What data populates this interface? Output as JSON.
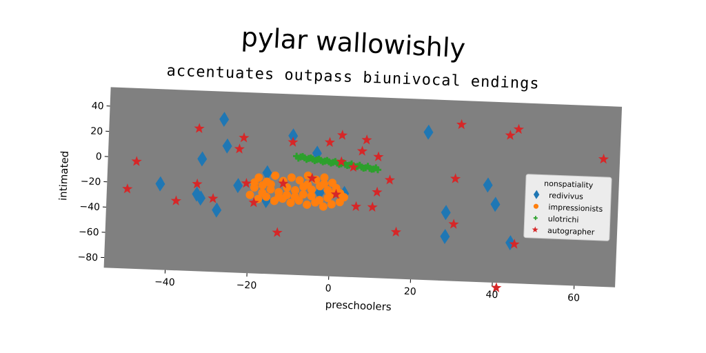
{
  "chart_data": {
    "type": "scatter",
    "title": "pylar wallowishly",
    "subtitle": "accentuates outpass biunivocal endings",
    "xlabel": "preschoolers",
    "ylabel": "intimated",
    "xlim": [
      -55,
      70
    ],
    "ylim": [
      -88,
      55
    ],
    "xticks": [
      -40,
      -20,
      0,
      20,
      40,
      60
    ],
    "yticks": [
      40,
      20,
      0,
      -20,
      -40,
      -60,
      -80
    ],
    "background_color": "#808080",
    "grid": false,
    "legend": {
      "title": "nonspatiality",
      "placement": "right"
    },
    "series": [
      {
        "name": "redivivus",
        "marker": "diamond",
        "color": "#1f77b4",
        "points": [
          [
            -27,
            33
          ],
          [
            -10,
            22
          ],
          [
            -4,
            9
          ],
          [
            -26,
            12
          ],
          [
            -32,
            1
          ],
          [
            -42,
            -20
          ],
          [
            -33,
            -27
          ],
          [
            -32,
            -30
          ],
          [
            -28,
            -39
          ],
          [
            -23,
            -19
          ],
          [
            -16,
            -8
          ],
          [
            -16,
            -30
          ],
          [
            -3,
            -22
          ],
          [
            3,
            -22
          ],
          [
            23,
            29
          ],
          [
            28,
            -34
          ],
          [
            28,
            -53
          ],
          [
            38,
            -11
          ],
          [
            40,
            -26
          ],
          [
            44,
            -56
          ]
        ]
      },
      {
        "name": "impressionists",
        "marker": "circle",
        "color": "#ff7f0e",
        "points": [
          [
            -18,
            -12
          ],
          [
            -16,
            -15
          ],
          [
            -14,
            -10
          ],
          [
            -12,
            -14
          ],
          [
            -10,
            -11
          ],
          [
            -8,
            -13
          ],
          [
            -6,
            -9
          ],
          [
            -4,
            -12
          ],
          [
            -2,
            -10
          ],
          [
            0,
            -14
          ],
          [
            1,
            -18
          ],
          [
            -1,
            -20
          ],
          [
            -3,
            -17
          ],
          [
            -5,
            -20
          ],
          [
            -7,
            -18
          ],
          [
            -9,
            -21
          ],
          [
            -11,
            -19
          ],
          [
            -13,
            -23
          ],
          [
            -15,
            -21
          ],
          [
            -17,
            -24
          ],
          [
            -19,
            -20
          ],
          [
            -20,
            -26
          ],
          [
            -18,
            -29
          ],
          [
            -16,
            -27
          ],
          [
            -14,
            -30
          ],
          [
            -12,
            -28
          ],
          [
            -10,
            -31
          ],
          [
            -8,
            -29
          ],
          [
            -6,
            -32
          ],
          [
            -4,
            -30
          ],
          [
            -2,
            -33
          ],
          [
            0,
            -31
          ],
          [
            2,
            -29
          ],
          [
            3,
            -25
          ],
          [
            2,
            -22
          ],
          [
            -1,
            -26
          ],
          [
            -3,
            -28
          ],
          [
            -5,
            -25
          ],
          [
            -7,
            -24
          ],
          [
            -9,
            -26
          ],
          [
            -11,
            -25
          ],
          [
            -13,
            -27
          ],
          [
            -15,
            -17
          ],
          [
            -17,
            -18
          ],
          [
            -19,
            -16
          ],
          [
            -6,
            -16
          ],
          [
            -2,
            -15
          ],
          [
            0,
            -23
          ]
        ]
      },
      {
        "name": "ulotrichi",
        "marker": "plus",
        "color": "#2ca02c",
        "points": [
          [
            -9,
            6
          ],
          [
            -8,
            5.5
          ],
          [
            -7,
            5
          ],
          [
            -6,
            4.6
          ],
          [
            -5,
            4.2
          ],
          [
            -4,
            3.8
          ],
          [
            -3,
            3.4
          ],
          [
            -2,
            3
          ],
          [
            -1,
            2.6
          ],
          [
            0,
            2.2
          ],
          [
            1,
            1.8
          ],
          [
            2,
            1.4
          ],
          [
            3,
            1
          ],
          [
            4,
            0.6
          ],
          [
            5,
            0.2
          ],
          [
            6,
            -0.2
          ],
          [
            7,
            -0.6
          ],
          [
            8,
            -1
          ],
          [
            9,
            -1.4
          ],
          [
            10,
            -1.8
          ],
          [
            11,
            -2.2
          ],
          [
            -8.5,
            4.5
          ],
          [
            -6.5,
            3.8
          ],
          [
            -4.5,
            3
          ],
          [
            -2.5,
            2.4
          ],
          [
            -0.5,
            1.6
          ],
          [
            1.5,
            0.8
          ],
          [
            3.5,
            0.2
          ],
          [
            5.5,
            -0.6
          ],
          [
            7.5,
            -1.4
          ],
          [
            9.5,
            -2
          ],
          [
            -7.5,
            6
          ],
          [
            -5.5,
            5
          ],
          [
            -3.5,
            4.4
          ],
          [
            -1.5,
            3.6
          ],
          [
            0.5,
            3
          ],
          [
            2.5,
            2.2
          ],
          [
            4.5,
            1.6
          ],
          [
            6.5,
            0.8
          ],
          [
            8.5,
            0.2
          ],
          [
            10.5,
            -0.8
          ]
        ]
      },
      {
        "name": "autographer",
        "marker": "star",
        "color": "#d62728",
        "points": [
          [
            -50,
            -25
          ],
          [
            -48,
            -3
          ],
          [
            -38,
            -33
          ],
          [
            -33,
            25
          ],
          [
            -33,
            -19
          ],
          [
            -29,
            -30
          ],
          [
            -23,
            10
          ],
          [
            -22,
            19
          ],
          [
            -21,
            -17
          ],
          [
            -19,
            -32
          ],
          [
            -13,
            -55
          ],
          [
            -12,
            -16
          ],
          [
            -10,
            17
          ],
          [
            -5,
            -11
          ],
          [
            -1,
            18
          ],
          [
            1,
            -23
          ],
          [
            2,
            3
          ],
          [
            2,
            24
          ],
          [
            5,
            -1
          ],
          [
            6,
            -32
          ],
          [
            7,
            12
          ],
          [
            8,
            21
          ],
          [
            10,
            -32
          ],
          [
            11,
            -20
          ],
          [
            11,
            8
          ],
          [
            14,
            -10
          ],
          [
            16,
            -51
          ],
          [
            30,
            -7
          ],
          [
            30,
            -43
          ],
          [
            31,
            36
          ],
          [
            41,
            -92
          ],
          [
            43,
            29
          ],
          [
            45,
            34
          ],
          [
            45,
            -57
          ],
          [
            66,
            13
          ]
        ]
      }
    ]
  }
}
